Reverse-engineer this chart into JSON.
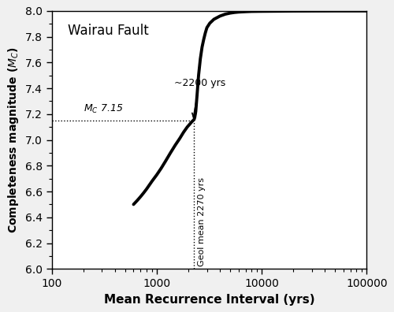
{
  "title": "Wairau Fault",
  "xlabel": "Mean Recurrence Interval (yrs)",
  "ylabel": "Completeness magnitude ($M_C$)",
  "xlim": [
    100,
    100000
  ],
  "ylim": [
    6.0,
    8.0
  ],
  "mc_line": 7.15,
  "ri_line": 2270,
  "annotation_text": "~2200 yrs",
  "mc_label": "$M_C$ 7.15",
  "geol_label": "Geol mean 2270 yrs",
  "curve_x": [
    600,
    650,
    700,
    750,
    800,
    900,
    1000,
    1100,
    1200,
    1350,
    1500,
    1650,
    1800,
    1950,
    2050,
    2150,
    2200,
    2250,
    2270,
    2300,
    2350,
    2420,
    2500,
    2600,
    2700,
    2800,
    2900,
    3000,
    3200,
    3500,
    4000,
    4500,
    5000,
    5500,
    6000,
    7000,
    8000,
    10000,
    15000,
    20000,
    30000,
    50000,
    80000,
    100000
  ],
  "curve_y": [
    6.5,
    6.53,
    6.56,
    6.59,
    6.62,
    6.68,
    6.73,
    6.78,
    6.83,
    6.9,
    6.96,
    7.01,
    7.06,
    7.1,
    7.12,
    7.14,
    7.148,
    7.155,
    7.16,
    7.175,
    7.22,
    7.35,
    7.5,
    7.63,
    7.72,
    7.78,
    7.83,
    7.87,
    7.905,
    7.935,
    7.96,
    7.975,
    7.983,
    7.988,
    7.991,
    7.994,
    7.996,
    7.997,
    7.998,
    7.999,
    7.9995,
    8.0,
    8.0,
    8.0
  ],
  "line_color": "black",
  "line_width": 2.8,
  "background_color": "#f0f0f0"
}
